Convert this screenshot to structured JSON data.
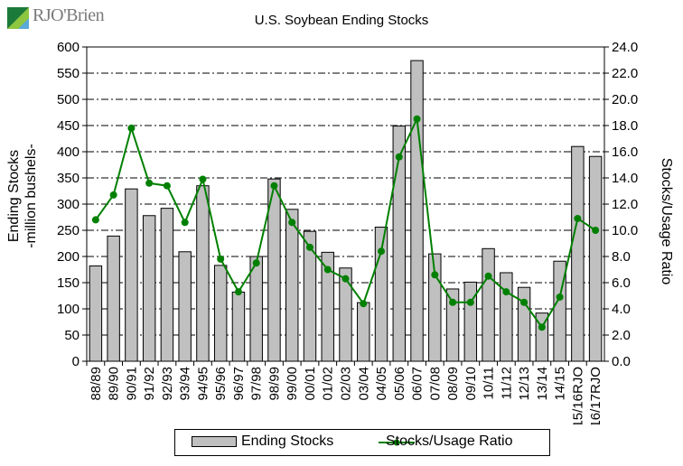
{
  "logo": {
    "text": "RJO'Brien",
    "colors": [
      "#1b7a3a",
      "#8dc63f",
      "#5aa9d6"
    ]
  },
  "chart_data": {
    "type": "bar",
    "title": "U.S. Soybean Ending Stocks",
    "ylabel_left": [
      "Ending Stocks",
      "-million bushels-"
    ],
    "ylabel_right": "Stocks/Usage Ratio",
    "ylim_left": [
      0,
      600
    ],
    "ylim_right": [
      0,
      24
    ],
    "yticks_left": [
      "0",
      "50",
      "100",
      "150",
      "200",
      "250",
      "300",
      "350",
      "400",
      "450",
      "500",
      "550",
      "600"
    ],
    "yticks_right": [
      "0.0",
      "2.0",
      "4.0",
      "6.0",
      "8.0",
      "10.0",
      "12.0",
      "14.0",
      "16.0",
      "18.0",
      "20.0",
      "22.0",
      "24.0"
    ],
    "grid": "horizontal dash-dot",
    "legend_position": "bottom",
    "categories": [
      "88/89",
      "89/90",
      "90/91",
      "91/92",
      "92/93",
      "93/94",
      "94/95",
      "95/96",
      "96/97",
      "97/98",
      "98/99",
      "99/00",
      "00/01",
      "01/02",
      "02/03",
      "03/04",
      "04/05",
      "05/06",
      "06/07",
      "07/08",
      "08/09",
      "09/10",
      "10/11",
      "11/12",
      "12/13",
      "13/14",
      "14/15",
      "15/16RJO",
      "16/17RJO"
    ],
    "series": [
      {
        "name": "Ending Stocks",
        "axis": "left",
        "color": "#c0c0c0",
        "values": [
          182,
          239,
          329,
          278,
          292,
          209,
          335,
          183,
          132,
          200,
          348,
          290,
          248,
          208,
          178,
          112,
          256,
          449,
          574,
          205,
          138,
          151,
          215,
          169,
          141,
          92,
          191,
          410,
          391
        ]
      },
      {
        "name": "Stocks/Usage Ratio",
        "axis": "right",
        "color": "#008000",
        "values": [
          10.8,
          12.7,
          17.8,
          13.6,
          13.4,
          10.6,
          13.9,
          7.8,
          5.3,
          7.5,
          13.4,
          10.6,
          8.7,
          7.0,
          6.3,
          4.4,
          8.4,
          15.6,
          18.5,
          6.6,
          4.5,
          4.5,
          6.5,
          5.3,
          4.5,
          2.6,
          4.9,
          10.9,
          10.0
        ]
      }
    ]
  }
}
